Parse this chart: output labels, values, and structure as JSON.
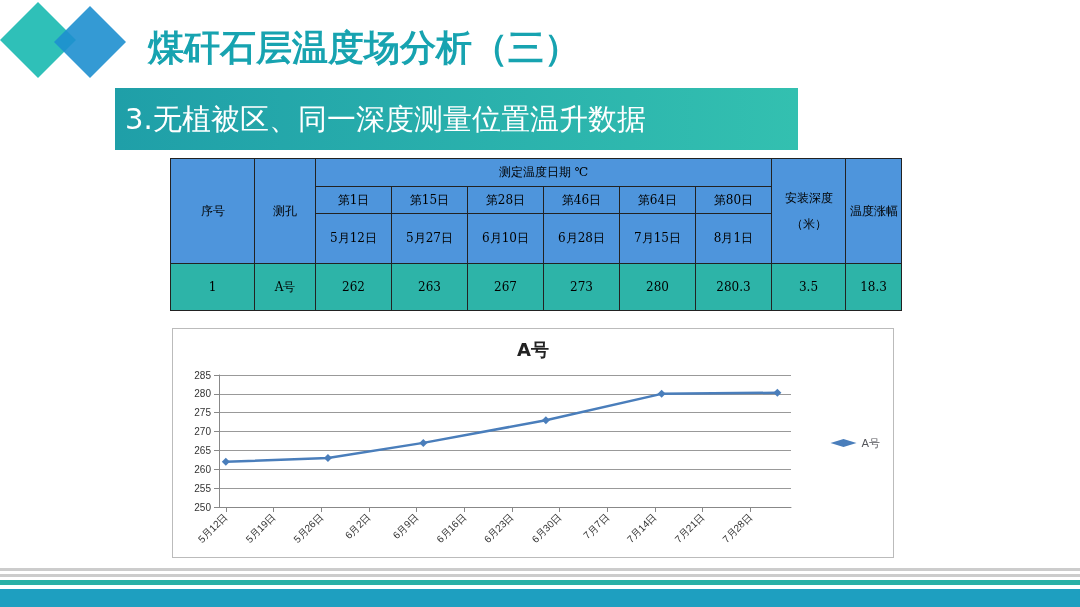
{
  "chart_data": {
    "type": "line",
    "title": "A号",
    "annotations": [
      "煤矸石层温度场分析（三）",
      "3.无植被区、同一深度测量位置温升数据",
      "序号",
      "测孔",
      "测定温度日期  ℃",
      "第1日",
      "第15日",
      "第28日",
      "第46日",
      "第64日",
      "第80日",
      "5月12日",
      "5月27日",
      "6月10日",
      "6月28日",
      "7月15日",
      "8月1日",
      "安装深度（米）",
      "温度涨幅",
      "1",
      "A号",
      "3.5",
      "18.3",
      "262",
      "263",
      "267",
      "273",
      "280",
      "280.3"
    ],
    "x": [
      "--05-12",
      "--05-27",
      "--06-10",
      "--06-28",
      "--07-15",
      "--08-01"
    ],
    "series": [
      {
        "name": "A号",
        "color": "#4a7ebb",
        "values": [
          262,
          263,
          267,
          273,
          280,
          280.3
        ]
      }
    ],
    "xlim": [
      "--05-11",
      "--08-03"
    ],
    "xticks": [
      {
        "value": "--05-12",
        "label": "5月12日"
      },
      {
        "value": "--05-19",
        "label": "5月19日"
      },
      {
        "value": "--05-26",
        "label": "5月26日"
      },
      {
        "value": "--06-02",
        "label": "6月2日"
      },
      {
        "value": "--06-09",
        "label": "6月9日"
      },
      {
        "value": "--06-16",
        "label": "6月16日"
      },
      {
        "value": "--06-23",
        "label": "6月23日"
      },
      {
        "value": "--06-30",
        "label": "6月30日"
      },
      {
        "value": "--07-07",
        "label": "7月7日"
      },
      {
        "value": "--07-14",
        "label": "7月14日"
      },
      {
        "value": "--07-21",
        "label": "7月21日"
      },
      {
        "value": "--07-28",
        "label": "7月28日"
      }
    ],
    "ylim": [
      250,
      285
    ],
    "yticks": [
      250,
      255,
      260,
      265,
      270,
      275,
      280,
      285
    ],
    "grid": "y",
    "legend": "right",
    "marker": "diamond",
    "line_style": "solid"
  }
}
